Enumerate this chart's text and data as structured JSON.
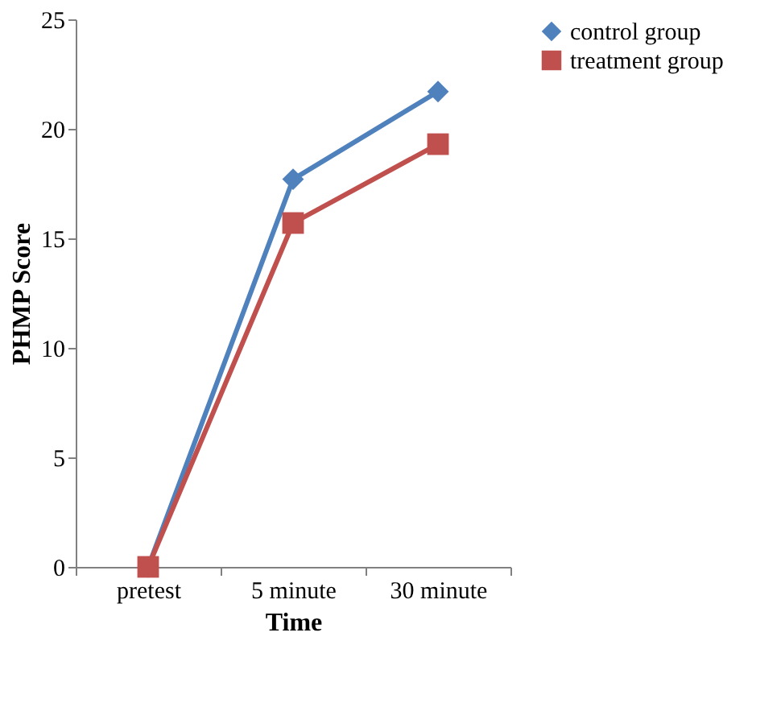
{
  "chart_data": {
    "type": "line",
    "xlabel": "Time",
    "ylabel": "PHMP Score",
    "categories": [
      "pretest",
      "5 minute",
      "30 minute"
    ],
    "series": [
      {
        "name": "control group",
        "color": "#4f81bd",
        "marker": "diamond",
        "values": [
          0,
          17.7,
          21.7
        ]
      },
      {
        "name": "treatment group",
        "color": "#c0504d",
        "marker": "square",
        "values": [
          0,
          15.7,
          19.3
        ]
      }
    ],
    "ylim": [
      0,
      25
    ],
    "yticks": [
      0,
      5,
      10,
      15,
      20,
      25
    ],
    "grid": false,
    "legend": "right",
    "line_style": "solid"
  }
}
